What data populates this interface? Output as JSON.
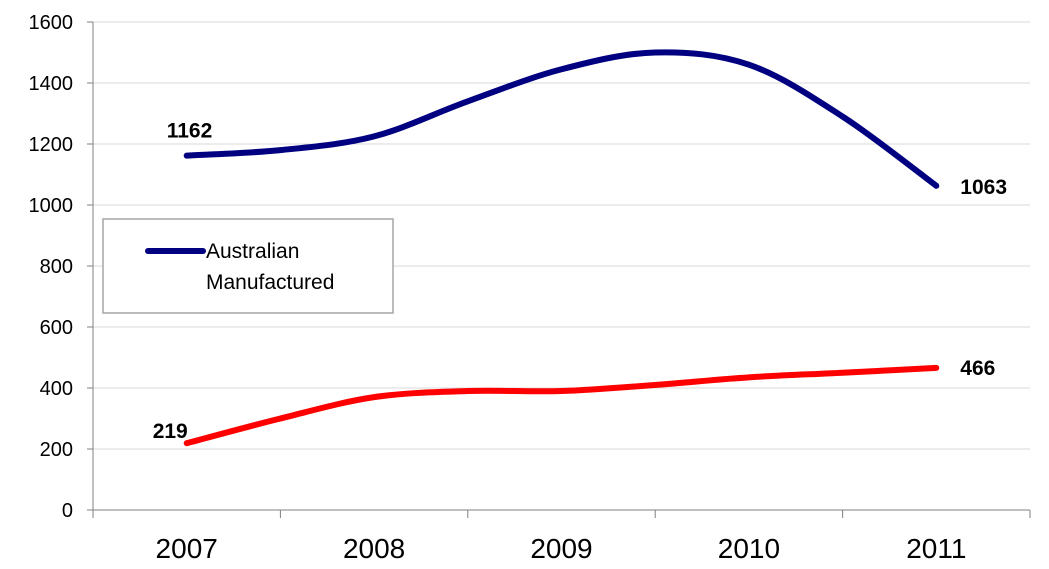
{
  "chart_data": {
    "type": "line",
    "categories": [
      "2007",
      "2008",
      "2009",
      "2010",
      "2011"
    ],
    "series": [
      {
        "name": "Australian Manufactured",
        "color": "#000080",
        "x": [
          2007,
          2007.5,
          2008,
          2008.5,
          2009,
          2009.5,
          2010,
          2010.5,
          2011
        ],
        "values": [
          1162,
          1180,
          1225,
          1340,
          1445,
          1500,
          1460,
          1290,
          1063
        ],
        "labels": [
          {
            "x": 2007,
            "value": 1162,
            "text": "1162"
          },
          {
            "x": 2011,
            "value": 1063,
            "text": "1063"
          }
        ]
      },
      {
        "name": "",
        "color": "#ff0000",
        "x": [
          2007,
          2007.5,
          2008,
          2008.5,
          2009,
          2009.5,
          2010,
          2010.5,
          2011
        ],
        "values": [
          219,
          300,
          370,
          390,
          390,
          410,
          435,
          450,
          466
        ],
        "labels": [
          {
            "x": 2007,
            "value": 219,
            "text": "219"
          },
          {
            "x": 2011,
            "value": 466,
            "text": "466"
          }
        ]
      }
    ],
    "yticks": [
      0,
      200,
      400,
      600,
      800,
      1000,
      1200,
      1400,
      1600
    ],
    "ylim": [
      0,
      1600
    ],
    "xlim": [
      2006.5,
      2011.5
    ],
    "title": "",
    "xlabel": "",
    "ylabel": "",
    "grid": true,
    "legend": {
      "placement": "upper-left inside plot",
      "entries": [
        {
          "label_line1": "Australian",
          "label_line2": "Manufactured",
          "color": "#000080"
        }
      ]
    }
  }
}
